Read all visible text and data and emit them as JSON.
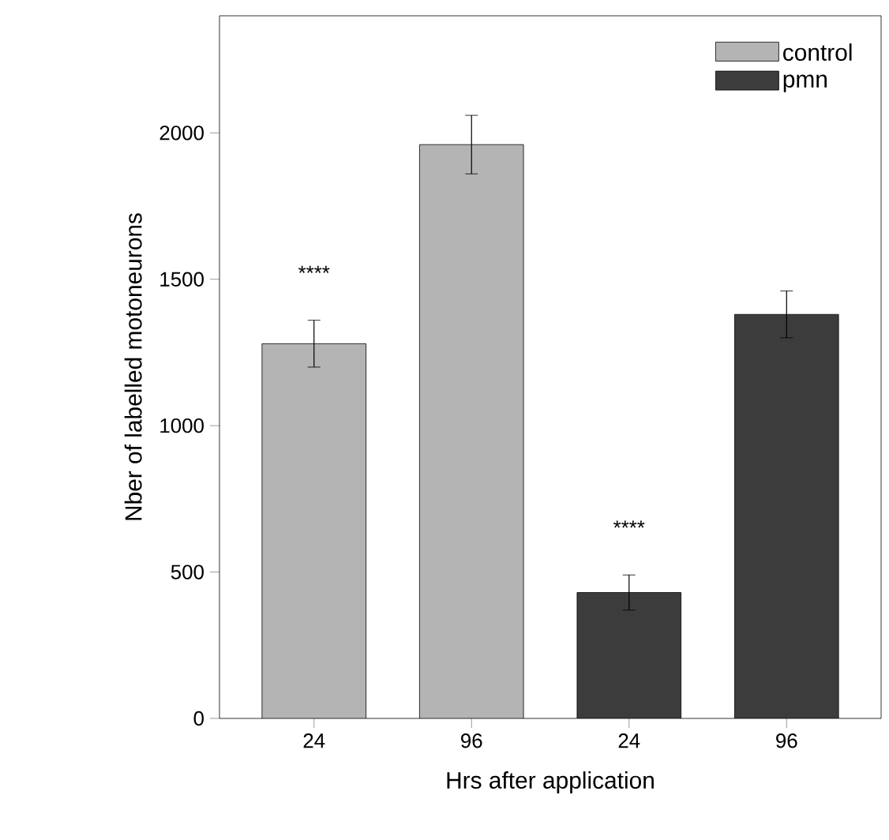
{
  "chart_data": {
    "type": "bar",
    "xlabel": "Hrs after application",
    "ylabel": "Nber of labelled motoneurons",
    "categories": [
      "24",
      "96",
      "24",
      "96"
    ],
    "series": [
      {
        "name": "control",
        "color": "#b4b4b4",
        "values": [
          1280,
          1960,
          null,
          null
        ],
        "errors": [
          80,
          100,
          null,
          null
        ]
      },
      {
        "name": "pmn",
        "color": "#3c3c3c",
        "values": [
          null,
          null,
          430,
          1380
        ],
        "errors": [
          null,
          null,
          60,
          80
        ]
      }
    ],
    "ylim": [
      0,
      2400
    ],
    "yticks": [
      0,
      500,
      1000,
      1500,
      2000
    ],
    "annotations": [
      "****",
      "****"
    ],
    "legend": "top right",
    "grid": false
  }
}
